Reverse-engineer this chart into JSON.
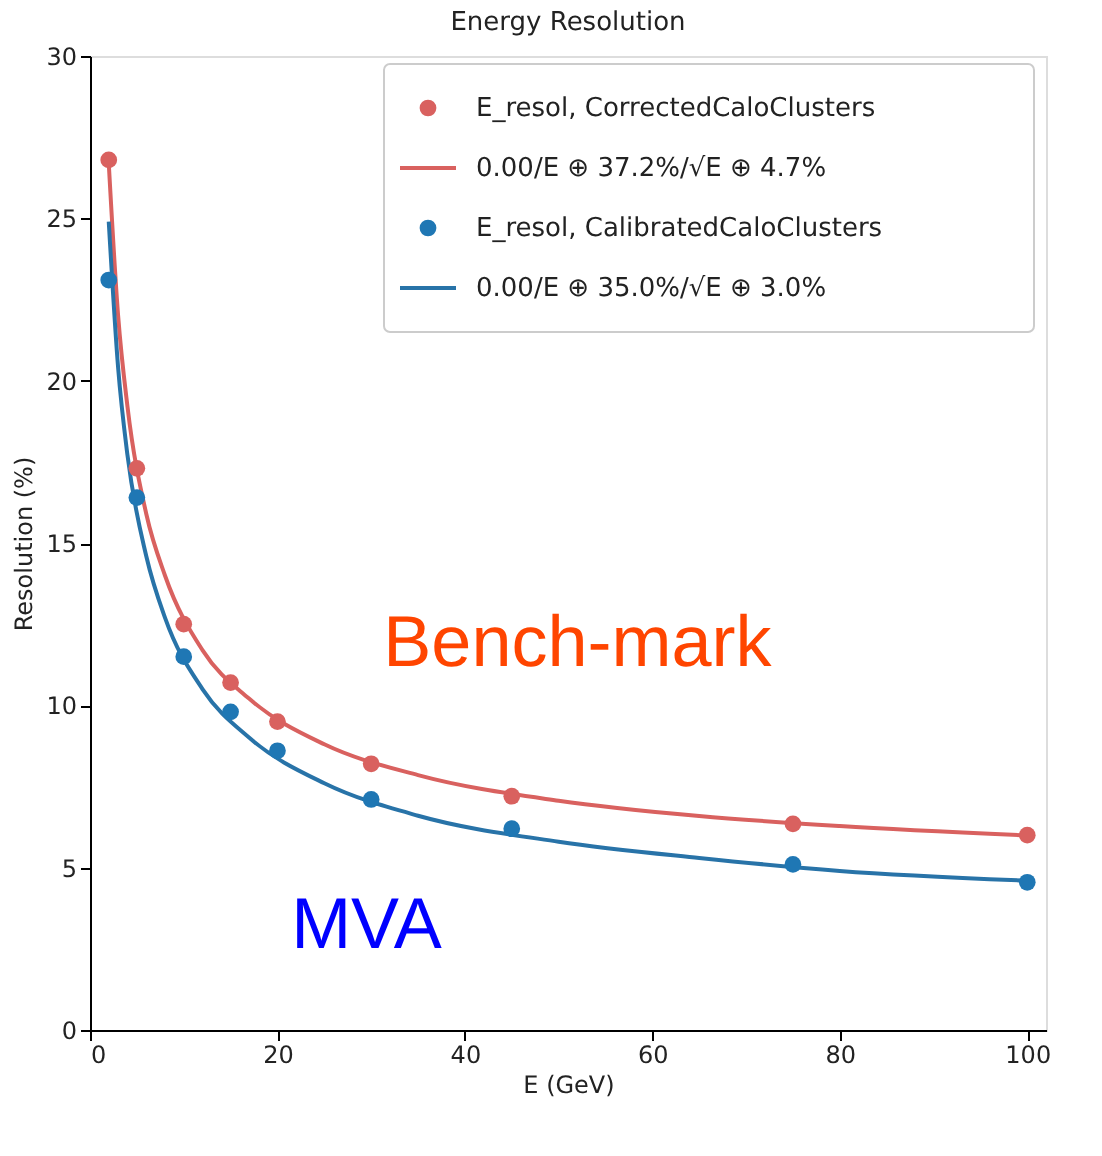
{
  "chart_data": {
    "type": "scatter",
    "title": "Energy Resolution",
    "xlabel": "E (GeV)",
    "ylabel": "Resolution (%)",
    "xlim": [
      0,
      102
    ],
    "ylim": [
      0,
      30
    ],
    "xticks": [
      0,
      20,
      40,
      60,
      80,
      100
    ],
    "yticks": [
      0,
      5,
      10,
      15,
      20,
      25,
      30
    ],
    "grid": false,
    "legend": "top right",
    "series": [
      {
        "name": "E_resol, CorrectedCaloClusters",
        "marker": "circle",
        "color": "#d9615f",
        "x": [
          2,
          5,
          10,
          15,
          20,
          30,
          45,
          75,
          100
        ],
        "values": [
          26.8,
          17.3,
          12.5,
          10.7,
          9.5,
          8.2,
          7.2,
          6.35,
          6.0
        ]
      },
      {
        "name": "0.00/E ⊕ 37.2%/√E ⊕ 4.7%",
        "type": "line",
        "marker": "none",
        "color": "#d9615f",
        "x": [
          2,
          3,
          4,
          6,
          8,
          12,
          17,
          25,
          35,
          50,
          65,
          80,
          100
        ],
        "values": [
          26.7,
          22.0,
          19.2,
          15.9,
          14.0,
          11.7,
          10.2,
          8.8,
          7.85,
          7.06,
          6.59,
          6.28,
          5.99
        ]
      },
      {
        "name": "E_resol, CalibratedCaloClusters",
        "marker": "circle",
        "color": "#1f77b4",
        "x": [
          2,
          5,
          10,
          15,
          20,
          30,
          45,
          75,
          100
        ],
        "values": [
          23.1,
          16.4,
          11.5,
          9.8,
          8.6,
          7.1,
          6.2,
          5.1,
          4.55
        ]
      },
      {
        "name": "0.00/E ⊕ 35.0%/√E ⊕ 3.0%",
        "type": "line",
        "marker": "none",
        "color": "#2873a8",
        "x": [
          2,
          3,
          4,
          6,
          8,
          12,
          17,
          25,
          35,
          50,
          65,
          80,
          100
        ],
        "values": [
          24.9,
          20.4,
          17.7,
          14.6,
          12.7,
          10.5,
          9.0,
          7.6,
          6.6,
          5.8,
          5.3,
          4.9,
          4.6
        ]
      }
    ],
    "annotations": [
      "Bench-mark",
      "MVA"
    ]
  }
}
